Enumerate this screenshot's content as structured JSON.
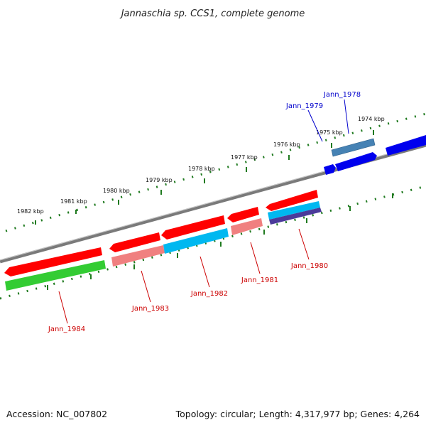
{
  "title": "Jannaschia sp. CCS1, complete genome",
  "footer": {
    "accession": "Accession: NC_007802",
    "topology": "Topology: circular; Length: 4,317,977 bp; Genes: 4,264"
  },
  "scale_labels": [
    "1982 kbp",
    "1981 kbp",
    "1980 kbp",
    "1979 kbp",
    "1978 kbp",
    "1977 kbp",
    "1976 kbp",
    "1975 kbp",
    "1974 kbp"
  ],
  "gene_labels": {
    "jann_1978": "Jann_1978",
    "jann_1979": "Jann_1979",
    "jann_1980": "Jann_1980",
    "jann_1981": "Jann_1981",
    "jann_1982": "Jann_1982",
    "jann_1983": "Jann_1983",
    "jann_1984": "Jann_1984"
  },
  "colors": {
    "backbone": "#7a7a7a",
    "tick": "#1f7a1f",
    "label_reverse": "#cc0000",
    "label_forward": "#0000cc",
    "gene_red": "#ff0000",
    "gene_pink": "#f08080",
    "gene_cyan": "#00b8f0",
    "gene_green": "#33cc33",
    "gene_blue": "#0000ee",
    "gene_steel": "#4682b4",
    "gene_purple": "#4b3b9a"
  }
}
